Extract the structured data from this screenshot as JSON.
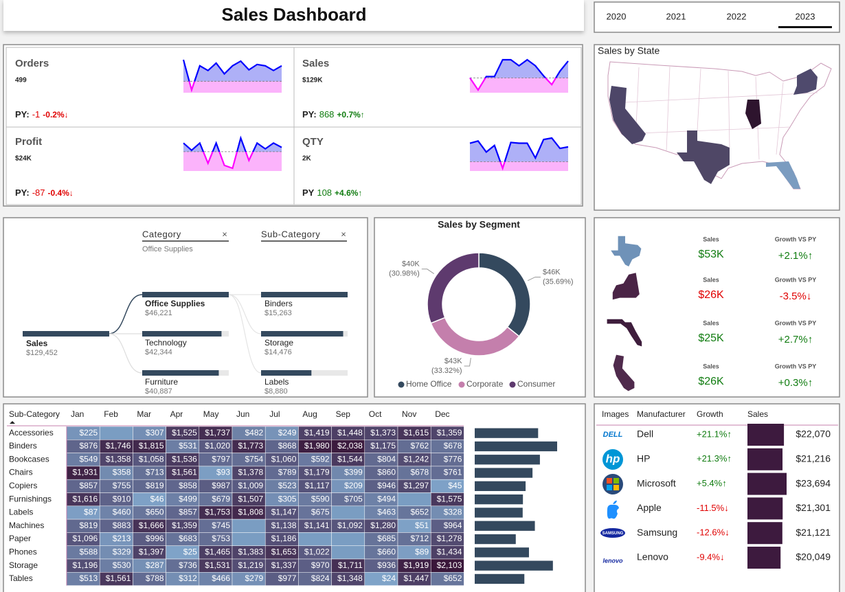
{
  "header": {
    "title": "Sales Dashboard"
  },
  "years": {
    "options": [
      "2020",
      "2021",
      "2022",
      "2023"
    ],
    "selected": 3
  },
  "kpis": [
    {
      "label": "Orders",
      "value": "499",
      "py_label": "PY:",
      "py_diff": "-1",
      "py_pct": "-0.2%↓",
      "trend": "down",
      "spark": [
        52,
        7,
        43,
        36,
        47,
        31,
        43,
        50,
        37,
        45,
        43,
        36,
        43
      ],
      "py_spark": 20
    },
    {
      "label": "Sales",
      "value": "$129K",
      "py_label": "PY:",
      "py_diff": "868",
      "py_pct": "+0.7%↑",
      "trend": "up",
      "spark": [
        25,
        7,
        27,
        27,
        52,
        52,
        43,
        52,
        43,
        28,
        15,
        35,
        50
      ],
      "py_spark": 25
    },
    {
      "label": "Profit",
      "value": "$24K",
      "py_label": "PY:",
      "py_diff": "-87",
      "py_pct": "-0.4%↓",
      "trend": "down",
      "spark": [
        48,
        38,
        48,
        20,
        48,
        17,
        13,
        55,
        24,
        48,
        40,
        48,
        42
      ],
      "py_spark": 36
    },
    {
      "label": "QTY",
      "value": "2K",
      "py_label": "PY",
      "py_diff": "108",
      "py_pct": "+4.6%↑",
      "trend": "up",
      "spark": [
        50,
        53,
        38,
        47,
        16,
        51,
        50,
        50,
        30,
        55,
        57,
        43,
        45
      ],
      "py_spark": 25
    }
  ],
  "map": {
    "title": "Sales by State"
  },
  "decomposition": {
    "levels": [
      {
        "title": "Category",
        "filter": "Office Supplies"
      },
      {
        "title": "Sub-Category"
      }
    ],
    "root": {
      "name": "Sales",
      "value": 129452,
      "label": "$129,452"
    },
    "categories": [
      {
        "name": "Office Supplies",
        "value": 46221,
        "label": "$46,221"
      },
      {
        "name": "Technology",
        "value": 42344,
        "label": "$42,344"
      },
      {
        "name": "Furniture",
        "value": 40887,
        "label": "$40,887"
      }
    ],
    "subcategories": [
      {
        "name": "Binders",
        "value": 15263,
        "label": "$15,263"
      },
      {
        "name": "Storage",
        "value": 14476,
        "label": "$14,476"
      },
      {
        "name": "Labels",
        "value": 8880,
        "label": "$8,880"
      }
    ]
  },
  "segment": {
    "title": "Sales by Segment",
    "series": [
      {
        "name": "Home Office",
        "color": "#34495e",
        "value": 35.69,
        "amount": "$46K",
        "pct_label": "(35.69%)"
      },
      {
        "name": "Corporate",
        "color": "#c47fac",
        "value": 33.32,
        "amount": "$43K",
        "pct_label": "(33.32%)"
      },
      {
        "name": "Consumer",
        "color": "#5e3a6e",
        "value": 30.98,
        "amount": "$40K",
        "pct_label": "(30.98%)"
      }
    ]
  },
  "state_cards": [
    {
      "sales_label": "Sales",
      "sales": "$53K",
      "growth_label": "Growth VS PY",
      "growth": "+2.1%↑",
      "trend": "up"
    },
    {
      "sales_label": "Sales",
      "sales": "$26K",
      "growth_label": "Growth VS PY",
      "growth": "-3.5%↓",
      "trend": "down"
    },
    {
      "sales_label": "Sales",
      "sales": "$25K",
      "growth_label": "Growth VS PY",
      "growth": "+2.7%↑",
      "trend": "up"
    },
    {
      "sales_label": "Sales",
      "sales": "$26K",
      "growth_label": "Growth VS PY",
      "growth": "+0.3%↑",
      "trend": "up"
    }
  ],
  "matrix": {
    "header": "Sub-Category",
    "months": [
      "Jan",
      "Feb",
      "Mar",
      "Apr",
      "May",
      "Jun",
      "Jul",
      "Aug",
      "Sep",
      "Oct",
      "Nov",
      "Dec"
    ],
    "rows": [
      {
        "name": "Accessories",
        "values": [
          225,
          null,
          307,
          1525,
          1737,
          482,
          249,
          1419,
          1448,
          1373,
          1615,
          1359
        ],
        "value_labels": [
          "$225",
          null,
          "$307",
          "$1,525",
          "$1,737",
          "$482",
          "$249",
          "$1,419",
          "$1,448",
          "$1,373",
          "$1,615",
          "$1,359"
        ],
        "total": 11739
      },
      {
        "name": "Binders",
        "values": [
          876,
          1746,
          1815,
          531,
          1020,
          1773,
          868,
          1980,
          2038,
          1175,
          762,
          678
        ],
        "value_labels": [
          "$876",
          "$1,746",
          "$1,815",
          "$531",
          "$1,020",
          "$1,773",
          "$868",
          "$1,980",
          "$2,038",
          "$1,175",
          "$762",
          "$678"
        ],
        "total": 15262
      },
      {
        "name": "Bookcases",
        "values": [
          549,
          1358,
          1058,
          1536,
          797,
          754,
          1060,
          592,
          1544,
          804,
          1242,
          776
        ],
        "value_labels": [
          "$549",
          "$1,358",
          "$1,058",
          "$1,536",
          "$797",
          "$754",
          "$1,060",
          "$592",
          "$1,544",
          "$804",
          "$1,242",
          "$776"
        ],
        "total": 12070
      },
      {
        "name": "Chairs",
        "values": [
          1931,
          358,
          713,
          1561,
          93,
          1378,
          789,
          1179,
          399,
          860,
          678,
          761
        ],
        "value_labels": [
          "$1,931",
          "$358",
          "$713",
          "$1,561",
          "$93",
          "$1,378",
          "$789",
          "$1,179",
          "$399",
          "$860",
          "$678",
          "$761"
        ],
        "total": 10700
      },
      {
        "name": "Copiers",
        "values": [
          857,
          755,
          819,
          858,
          987,
          1009,
          523,
          1117,
          209,
          946,
          1297,
          45
        ],
        "value_labels": [
          "$857",
          "$755",
          "$819",
          "$858",
          "$987",
          "$1,009",
          "$523",
          "$1,117",
          "$209",
          "$946",
          "$1,297",
          "$45"
        ],
        "total": 9422
      },
      {
        "name": "Furnishings",
        "values": [
          1616,
          910,
          46,
          499,
          679,
          1507,
          305,
          590,
          705,
          494,
          null,
          1575
        ],
        "value_labels": [
          "$1,616",
          "$910",
          "$46",
          "$499",
          "$679",
          "$1,507",
          "$305",
          "$590",
          "$705",
          "$494",
          null,
          "$1,575"
        ],
        "total": 8926
      },
      {
        "name": "Labels",
        "values": [
          87,
          460,
          650,
          857,
          1753,
          1808,
          1147,
          675,
          null,
          463,
          652,
          328
        ],
        "value_labels": [
          "$87",
          "$460",
          "$650",
          "$857",
          "$1,753",
          "$1,808",
          "$1,147",
          "$675",
          null,
          "$463",
          "$652",
          "$328"
        ],
        "total": 8880
      },
      {
        "name": "Machines",
        "values": [
          819,
          883,
          1666,
          1359,
          745,
          null,
          1138,
          1141,
          1092,
          1280,
          51,
          964
        ],
        "value_labels": [
          "$819",
          "$883",
          "$1,666",
          "$1,359",
          "$745",
          null,
          "$1,138",
          "$1,141",
          "$1,092",
          "$1,280",
          "$51",
          "$964"
        ],
        "total": 11138
      },
      {
        "name": "Paper",
        "values": [
          1096,
          213,
          996,
          683,
          753,
          null,
          1186,
          null,
          null,
          685,
          712,
          1278
        ],
        "value_labels": [
          "$1,096",
          "$213",
          "$996",
          "$683",
          "$753",
          null,
          "$1,186",
          null,
          null,
          "$685",
          "$712",
          "$1,278"
        ],
        "total": 7602
      },
      {
        "name": "Phones",
        "values": [
          588,
          329,
          1397,
          25,
          1465,
          1383,
          1653,
          1022,
          null,
          660,
          89,
          1434
        ],
        "value_labels": [
          "$588",
          "$329",
          "$1,397",
          "$25",
          "$1,465",
          "$1,383",
          "$1,653",
          "$1,022",
          null,
          "$660",
          "$89",
          "$1,434"
        ],
        "total": 10045
      },
      {
        "name": "Storage",
        "values": [
          1196,
          530,
          287,
          736,
          1531,
          1219,
          1337,
          970,
          1711,
          936,
          1919,
          2103
        ],
        "value_labels": [
          "$1,196",
          "$530",
          "$287",
          "$736",
          "$1,531",
          "$1,219",
          "$1,337",
          "$970",
          "$1,711",
          "$936",
          "$1,919",
          "$2,103"
        ],
        "total": 14475
      },
      {
        "name": "Tables",
        "values": [
          513,
          1561,
          788,
          312,
          466,
          279,
          977,
          824,
          1348,
          24,
          1447,
          652
        ],
        "value_labels": [
          "$513",
          "$1,561",
          "$788",
          "$312",
          "$466",
          "$279",
          "$977",
          "$824",
          "$1,348",
          "$24",
          "$1,447",
          "$652"
        ],
        "total": 9191
      }
    ]
  },
  "manufacturers": {
    "headers": [
      "Images",
      "Manufacturer",
      "Growth",
      "Sales"
    ],
    "rows": [
      {
        "logo": "DELL",
        "name": "Dell",
        "growth": "+21.1%↑",
        "trend": "up",
        "sales": {
          "value": 22070,
          "label": "$22,070"
        }
      },
      {
        "logo": "hp",
        "name": "HP",
        "growth": "+21.3%↑",
        "trend": "up",
        "sales": {
          "value": 21216,
          "label": "$21,216"
        }
      },
      {
        "name": "Microsoft",
        "growth": "+5.4%↑",
        "trend": "up",
        "sales": {
          "value": 23694,
          "label": "$23,694"
        }
      },
      {
        "name": "Apple",
        "growth": "-11.5%↓",
        "trend": "down",
        "sales": {
          "value": 21301,
          "label": "$21,301"
        }
      },
      {
        "logo": "SAMSUNG",
        "name": "Samsung",
        "growth": "-12.6%↓",
        "trend": "down",
        "sales": {
          "value": 21121,
          "label": "$21,121"
        }
      },
      {
        "logo": "lenovo",
        "name": "Lenovo",
        "growth": "-9.4%↓",
        "trend": "down",
        "sales": {
          "value": 20049,
          "label": "$20,049"
        }
      }
    ]
  }
}
